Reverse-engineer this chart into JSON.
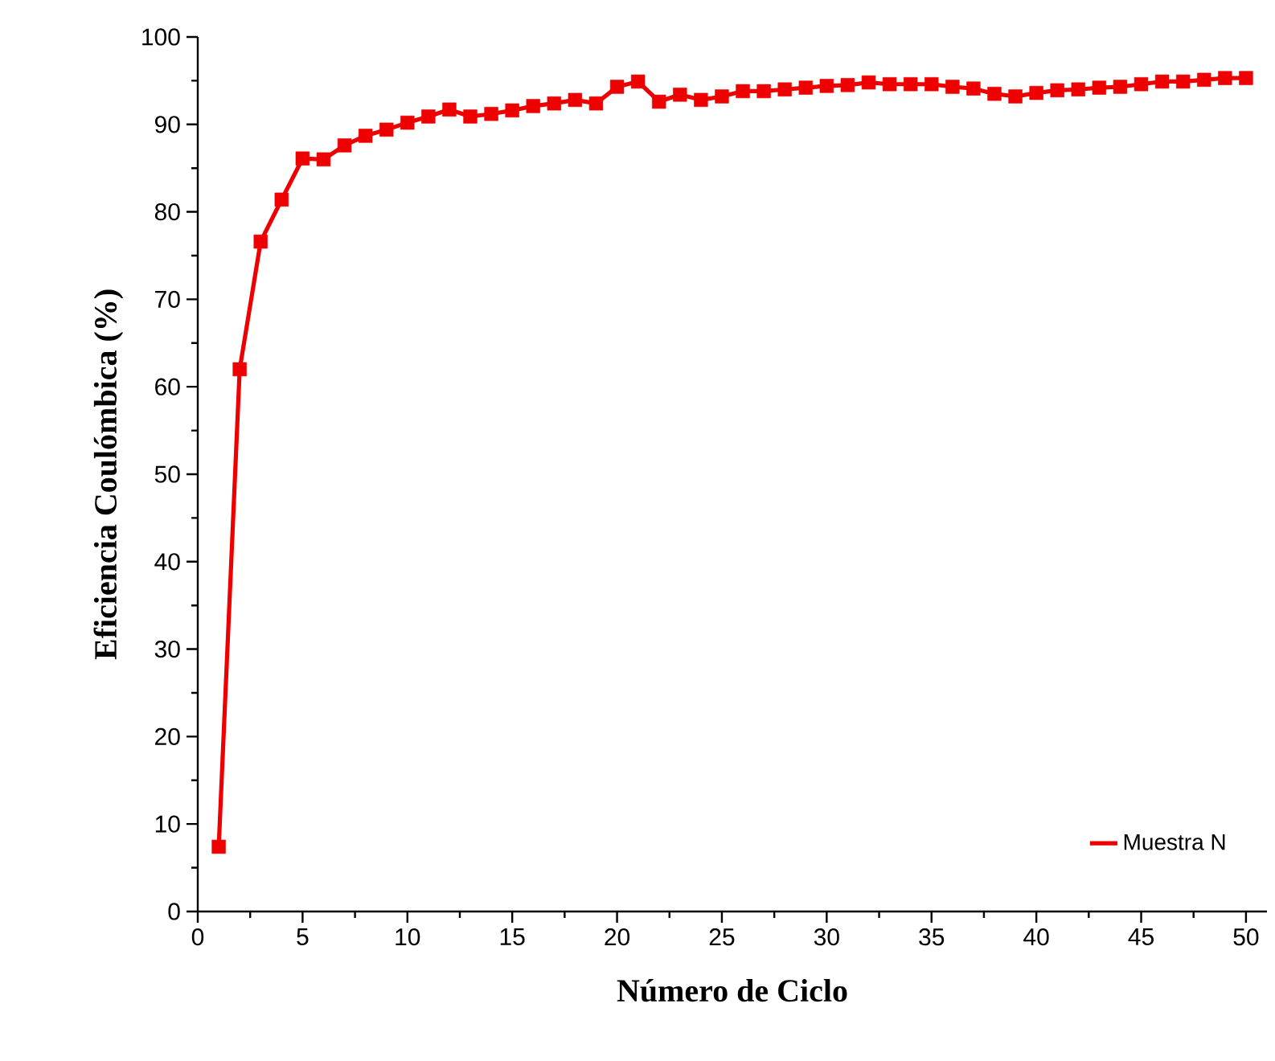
{
  "chart_data": {
    "type": "line",
    "xlabel": "Número de Ciclo",
    "ylabel": "Eficiencia Coulómbica (%)",
    "x": [
      1,
      2,
      3,
      4,
      5,
      6,
      7,
      8,
      9,
      10,
      11,
      12,
      13,
      14,
      15,
      16,
      17,
      18,
      19,
      20,
      21,
      22,
      23,
      24,
      25,
      26,
      27,
      28,
      29,
      30,
      31,
      32,
      33,
      34,
      35,
      36,
      37,
      38,
      39,
      40,
      41,
      42,
      43,
      44,
      45,
      46,
      47,
      48,
      49,
      50
    ],
    "series": [
      {
        "name": "Muestra N",
        "color": "#ee0000",
        "values": [
          7.4,
          62,
          76.6,
          81.4,
          86.1,
          86,
          87.6,
          88.7,
          89.4,
          90.2,
          90.9,
          91.7,
          90.9,
          91.2,
          91.6,
          92.1,
          92.4,
          92.8,
          92.4,
          94.3,
          94.9,
          92.6,
          93.4,
          92.8,
          93.2,
          93.8,
          93.8,
          94,
          94.2,
          94.4,
          94.5,
          94.8,
          94.6,
          94.6,
          94.6,
          94.3,
          94.1,
          93.5,
          93.2,
          93.6,
          93.9,
          94,
          94.2,
          94.3,
          94.6,
          94.9,
          94.9,
          95.1,
          95.3,
          95.3
        ]
      }
    ],
    "xlim": [
      0,
      51
    ],
    "ylim": [
      0,
      100
    ],
    "xticks": [
      0,
      5,
      10,
      15,
      20,
      25,
      30,
      35,
      40,
      45,
      50
    ],
    "yticks": [
      0,
      10,
      20,
      30,
      40,
      50,
      60,
      70,
      80,
      90,
      100
    ],
    "marker": "square",
    "line_style": "solid",
    "grid": false,
    "legend": "bottom right"
  }
}
